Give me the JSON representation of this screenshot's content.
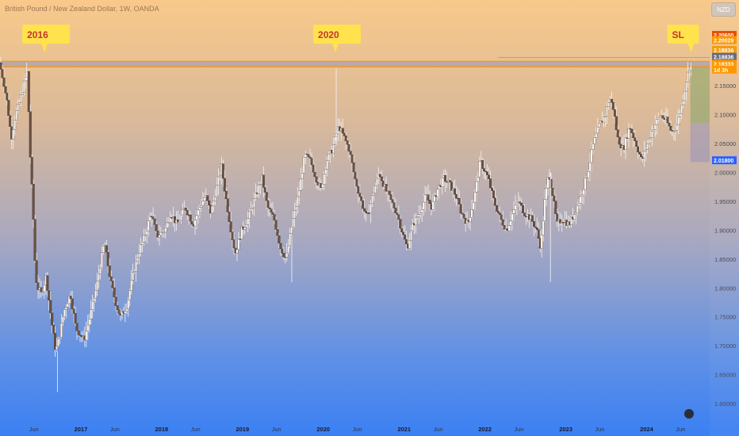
{
  "header": {
    "title": "British Pound / New Zealand Dollar, 1W, OANDA",
    "currency": "NZD"
  },
  "annotations": [
    {
      "label": "2016",
      "date": 2016.55
    },
    {
      "label": "2020",
      "date": 2020.15
    },
    {
      "label": "SL",
      "date": 2024.55
    }
  ],
  "price_labels": {
    "stop": "2.20600",
    "high": "2.20029",
    "level": "2.18836",
    "resistance": "2.18836",
    "current": "2.18333",
    "countdown": "1d 3h",
    "entry": "2.01800"
  },
  "chart_data": {
    "type": "candlestick",
    "x_axis": {
      "tick_labels": [
        "Jun",
        "2017",
        "Jun",
        "2018",
        "Jun",
        "2019",
        "Jun",
        "2020",
        "Jun",
        "2021",
        "Jun",
        "2022",
        "Jun",
        "2023",
        "Jun",
        "2024",
        "Jun"
      ],
      "tick_dates": [
        2016.42,
        2017.0,
        2017.42,
        2018.0,
        2018.42,
        2019.0,
        2019.42,
        2020.0,
        2020.42,
        2021.0,
        2021.42,
        2022.0,
        2022.42,
        2023.0,
        2023.42,
        2024.0,
        2024.42
      ],
      "range": [
        2016.0,
        2024.78
      ]
    },
    "y_axis": {
      "tick_labels": [
        "1.60000",
        "1.65000",
        "1.70000",
        "1.75000",
        "1.80000",
        "1.85000",
        "1.90000",
        "1.95000",
        "2.00000",
        "2.05000",
        "2.10000",
        "2.15000"
      ],
      "ticks": [
        1.6,
        1.65,
        1.7,
        1.75,
        1.8,
        1.85,
        1.9,
        1.95,
        2.0,
        2.05,
        2.1,
        2.15
      ],
      "range": [
        1.585,
        2.26
      ]
    },
    "close_path": [
      [
        2016.0,
        2.19
      ],
      [
        2016.05,
        2.16
      ],
      [
        2016.1,
        2.12
      ],
      [
        2016.15,
        2.06
      ],
      [
        2016.2,
        2.1
      ],
      [
        2016.25,
        2.12
      ],
      [
        2016.3,
        2.15
      ],
      [
        2016.35,
        2.175
      ],
      [
        2016.38,
        2.04
      ],
      [
        2016.42,
        1.93
      ],
      [
        2016.45,
        1.82
      ],
      [
        2016.48,
        1.8
      ],
      [
        2016.52,
        1.79
      ],
      [
        2016.58,
        1.82
      ],
      [
        2016.65,
        1.74
      ],
      [
        2016.7,
        1.69
      ],
      [
        2016.75,
        1.72
      ],
      [
        2016.8,
        1.76
      ],
      [
        2016.88,
        1.79
      ],
      [
        2016.95,
        1.73
      ],
      [
        2017.05,
        1.71
      ],
      [
        2017.12,
        1.75
      ],
      [
        2017.2,
        1.8
      ],
      [
        2017.3,
        1.88
      ],
      [
        2017.38,
        1.81
      ],
      [
        2017.45,
        1.77
      ],
      [
        2017.5,
        1.75
      ],
      [
        2017.58,
        1.77
      ],
      [
        2017.65,
        1.82
      ],
      [
        2017.72,
        1.86
      ],
      [
        2017.8,
        1.89
      ],
      [
        2017.88,
        1.93
      ],
      [
        2017.95,
        1.89
      ],
      [
        2018.05,
        1.9
      ],
      [
        2018.12,
        1.93
      ],
      [
        2018.2,
        1.91
      ],
      [
        2018.3,
        1.94
      ],
      [
        2018.4,
        1.91
      ],
      [
        2018.48,
        1.94
      ],
      [
        2018.55,
        1.96
      ],
      [
        2018.62,
        1.93
      ],
      [
        2018.7,
        1.98
      ],
      [
        2018.75,
        2.01
      ],
      [
        2018.8,
        1.96
      ],
      [
        2018.88,
        1.89
      ],
      [
        2018.92,
        1.86
      ],
      [
        2019.0,
        1.9
      ],
      [
        2019.08,
        1.92
      ],
      [
        2019.15,
        1.95
      ],
      [
        2019.25,
        1.99
      ],
      [
        2019.32,
        1.94
      ],
      [
        2019.4,
        1.92
      ],
      [
        2019.48,
        1.87
      ],
      [
        2019.55,
        1.85
      ],
      [
        2019.62,
        1.91
      ],
      [
        2019.7,
        1.96
      ],
      [
        2019.78,
        2.03
      ],
      [
        2019.85,
        2.02
      ],
      [
        2019.92,
        1.99
      ],
      [
        2019.98,
        1.97
      ],
      [
        2020.05,
        2.02
      ],
      [
        2020.12,
        2.04
      ],
      [
        2020.2,
        2.08
      ],
      [
        2020.27,
        2.06
      ],
      [
        2020.33,
        2.04
      ],
      [
        2020.4,
        1.99
      ],
      [
        2020.48,
        1.95
      ],
      [
        2020.55,
        1.92
      ],
      [
        2020.62,
        1.96
      ],
      [
        2020.7,
        2.0
      ],
      [
        2020.78,
        1.97
      ],
      [
        2020.85,
        1.95
      ],
      [
        2020.92,
        1.93
      ],
      [
        2021.0,
        1.89
      ],
      [
        2021.05,
        1.87
      ],
      [
        2021.12,
        1.91
      ],
      [
        2021.2,
        1.93
      ],
      [
        2021.28,
        1.96
      ],
      [
        2021.35,
        1.94
      ],
      [
        2021.42,
        1.97
      ],
      [
        2021.5,
        1.99
      ],
      [
        2021.57,
        1.98
      ],
      [
        2021.65,
        1.96
      ],
      [
        2021.72,
        1.93
      ],
      [
        2021.8,
        1.91
      ],
      [
        2021.88,
        1.96
      ],
      [
        2021.95,
        2.02
      ],
      [
        2022.05,
        1.99
      ],
      [
        2022.12,
        1.95
      ],
      [
        2022.2,
        1.92
      ],
      [
        2022.28,
        1.9
      ],
      [
        2022.35,
        1.93
      ],
      [
        2022.42,
        1.95
      ],
      [
        2022.5,
        1.93
      ],
      [
        2022.58,
        1.92
      ],
      [
        2022.65,
        1.9
      ],
      [
        2022.7,
        1.87
      ],
      [
        2022.75,
        1.95
      ],
      [
        2022.8,
        2.0
      ],
      [
        2022.85,
        1.96
      ],
      [
        2022.9,
        1.91
      ],
      [
        2022.97,
        1.92
      ],
      [
        2023.05,
        1.91
      ],
      [
        2023.12,
        1.93
      ],
      [
        2023.2,
        1.96
      ],
      [
        2023.28,
        2.0
      ],
      [
        2023.35,
        2.05
      ],
      [
        2023.42,
        2.08
      ],
      [
        2023.5,
        2.1
      ],
      [
        2023.55,
        2.13
      ],
      [
        2023.6,
        2.11
      ],
      [
        2023.65,
        2.06
      ],
      [
        2023.72,
        2.04
      ],
      [
        2023.8,
        2.08
      ],
      [
        2023.88,
        2.05
      ],
      [
        2023.95,
        2.02
      ],
      [
        2024.02,
        2.05
      ],
      [
        2024.1,
        2.08
      ],
      [
        2024.18,
        2.1
      ],
      [
        2024.25,
        2.09
      ],
      [
        2024.32,
        2.07
      ],
      [
        2024.38,
        2.08
      ],
      [
        2024.45,
        2.12
      ],
      [
        2024.5,
        2.16
      ],
      [
        2024.54,
        2.183
      ]
    ],
    "wick_spikes": [
      [
        2016.7,
        1.62
      ],
      [
        2016.32,
        2.19
      ],
      [
        2019.6,
        1.81
      ],
      [
        2020.15,
        2.18
      ],
      [
        2022.8,
        1.81
      ],
      [
        2024.54,
        2.19
      ]
    ],
    "horizontal_levels": [
      {
        "value": 2.18836,
        "label": "2.18836",
        "color": "#8f8fa8"
      },
      {
        "value": 2.18333,
        "label": "2.18333",
        "color": "#ff9800"
      },
      {
        "value": 2.20029,
        "label": "2.20029",
        "color": "#ff9800"
      },
      {
        "value": 2.206,
        "label": "2.20600",
        "color": "#e65100"
      },
      {
        "value": 2.018,
        "label": "2.01800",
        "color": "#2962ff"
      }
    ],
    "position_box": {
      "start_date": 2024.54,
      "entry": 2.183,
      "profit_lower": 2.0855,
      "loss_top": 2.0855,
      "loss_bottom": 2.018
    }
  }
}
